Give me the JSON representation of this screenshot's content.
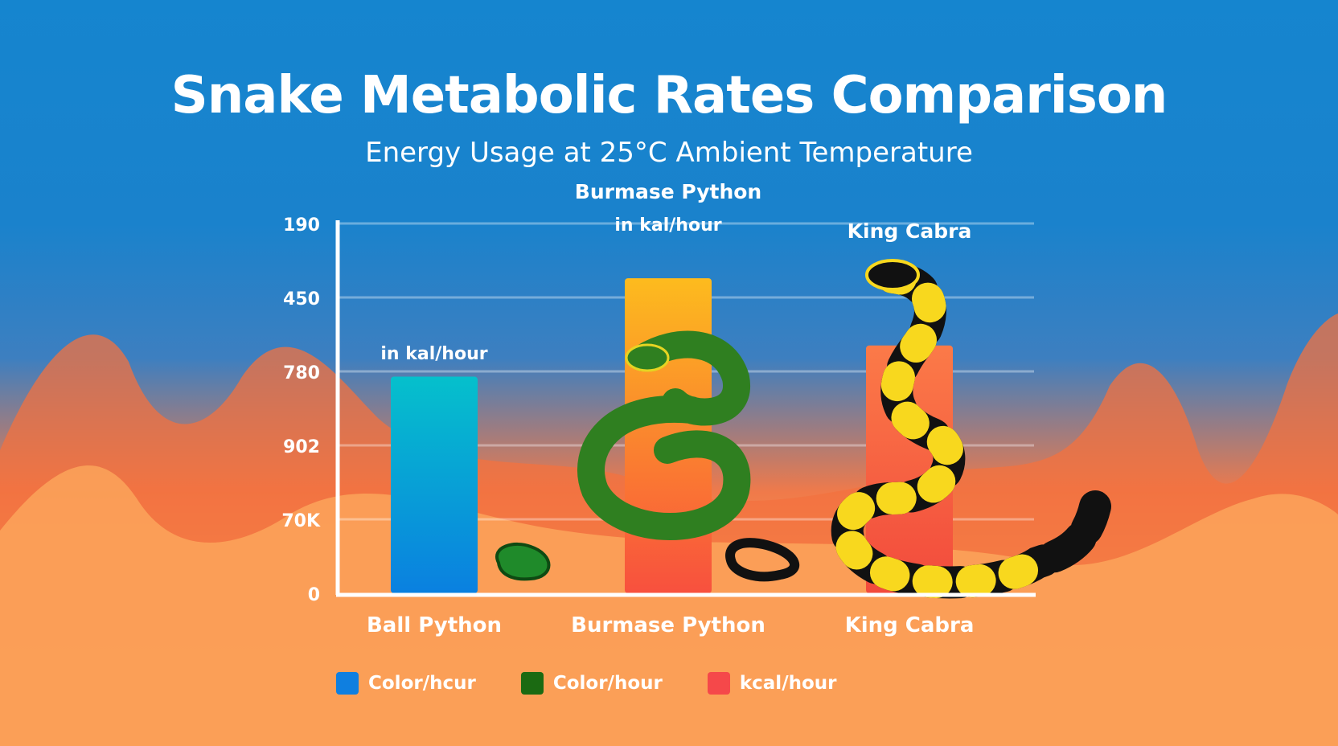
{
  "title": "Snake Metabolic Rates Comparison",
  "subtitle": "Energy Usage at 25°C Ambient Temperature",
  "chart_data": {
    "type": "bar",
    "title": "Snake Metabolic Rates Comparison",
    "subtitle": "Energy Usage at 25°C Ambient Temperature",
    "categories": [
      "Ball Python",
      "Burmase Python",
      "King Cabra"
    ],
    "values": [
      2.93,
      4.26,
      3.35
    ],
    "y_tick_labels": [
      "0",
      "70K",
      "902",
      "780",
      "450",
      "190"
    ],
    "ylim": [
      0,
      5
    ],
    "grid": true,
    "bar_colors": [
      [
        "#05c0cc",
        "#0a80e0"
      ],
      [
        "#fdbb1e",
        "#f8503e"
      ],
      [
        "#fb7a48",
        "#f24a3c"
      ]
    ],
    "bar_top_labels": [
      {
        "lines": [
          "in kal/hour"
        ]
      },
      {
        "lines": [
          "Burmase Python",
          "in kal/hour"
        ]
      },
      {
        "lines": [
          "King Cabra"
        ]
      }
    ],
    "legend": {
      "placement": "bottom",
      "entries": [
        {
          "label": "Color/hcur",
          "color": "#0f7fe0"
        },
        {
          "label": "Color/hour",
          "color": "#1b6a12"
        },
        {
          "label": "kcal/hour",
          "color": "#f5484a"
        }
      ]
    }
  }
}
